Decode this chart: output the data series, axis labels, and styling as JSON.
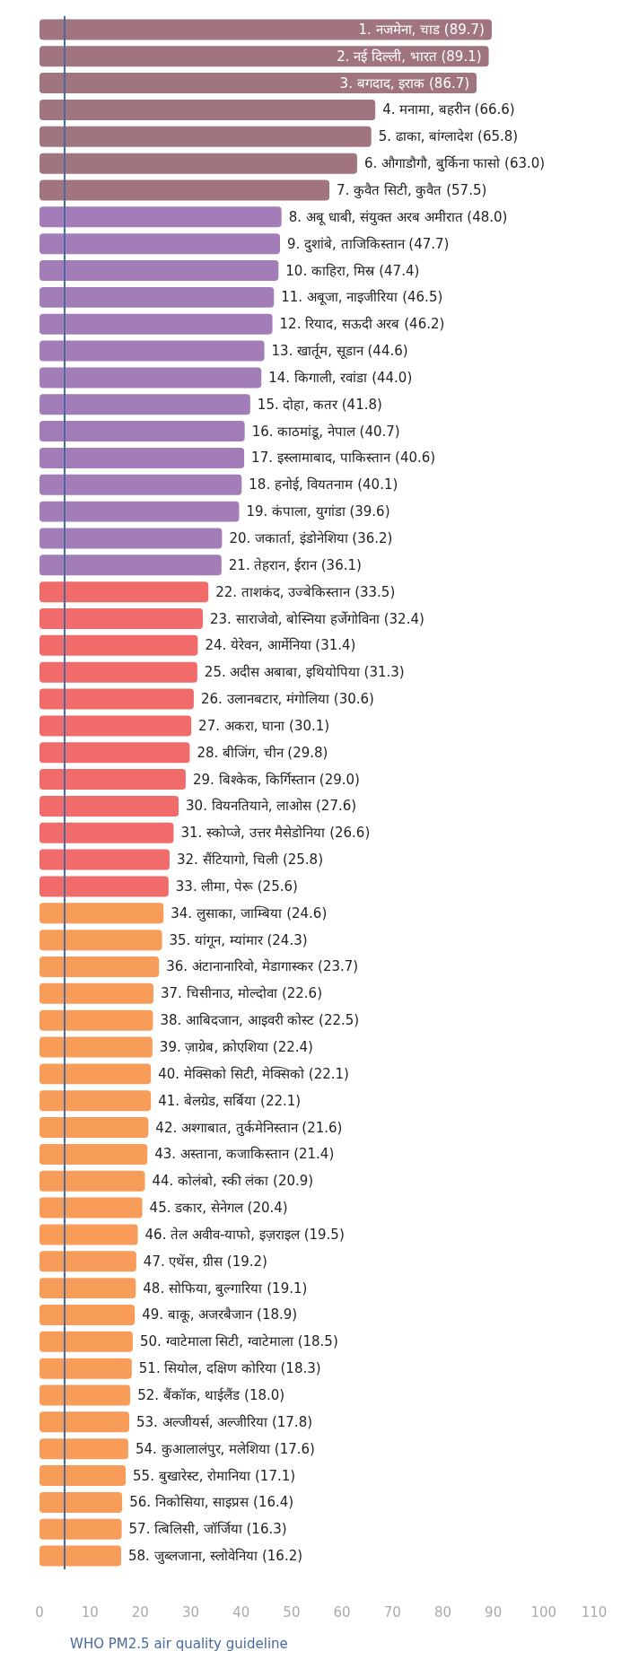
{
  "chart_data": {
    "type": "bar",
    "orientation": "horizontal",
    "categories": [
      "1. नजमेना, चाड",
      "2. नई दिल्ली, भारत",
      "3. बगदाद, इराक",
      "4. मनामा, बहरीन",
      "5. ढाका, बांग्लादेश",
      "6. औगाडौगौ, बुर्किना फासो",
      "7. कुवैत सिटी, कुवैत",
      "8. अबू धाबी, संयुक्त अरब अमीरात",
      "9. दुशांबे, ताजिकिस्तान",
      "10. काहिरा, मिस्र",
      "11. अबूजा, नाइजीरिया",
      "12. रियाद, सऊदी अरब",
      "13. खार्तूम, सूडान",
      "14. किगाली, रवांडा",
      "15. दोहा, कतर",
      "16. काठमांडू, नेपाल",
      "17. इस्लामाबाद, पाकिस्तान",
      "18. हनोई, वियतनाम",
      "19. कंपाला, युगांडा",
      "20. जकार्ता, इंडोनेशिया",
      "21. तेहरान, ईरान",
      "22. ताशकंद, उज्बेकिस्तान",
      "23. साराजेवो, बोस्निया हर्जेगोविना",
      "24. येरेवन, आर्मेनिया",
      "25. अदीस अबाबा, इथियोपिया",
      "26. उलानबटार, मंगोलिया",
      "27. अकरा, घाना",
      "28. बीजिंग, चीन",
      "29. बिश्केक, किर्गिस्तान",
      "30. वियनतियाने, लाओस",
      "31. स्कोप्जे, उत्तर मैसेडोनिया",
      "32. सैंटियागो, चिली",
      "33. लीमा, पेरू",
      "34. लुसाका, जाम्बिया",
      "35. यांगून, म्यांमार",
      "36. अंटानानारिवो, मेडागास्कर",
      "37. चिसीनाउ, मोल्दोवा",
      "38. आबिदजान, आइवरी कोस्ट",
      "39. ज़ाग्रेब, क्रोएशिया",
      "40. मेक्सिको सिटी, मेक्सिको",
      "41. बेलग्रेड, सर्बिया",
      "42. अश्गाबात, तुर्कमेनिस्तान",
      "43. अस्ताना, कजाकिस्तान",
      "44. कोलंबो, स्की लंका",
      "45. डकार, सेनेगल",
      "46. तेल अवीव-याफो, इज़राइल",
      "47. एथेंस, ग्रीस",
      "48. सोफिया, बुल्गारिया",
      "49. बाकू, अजरबैजान",
      "50. ग्वाटेमाला सिटी, ग्वाटेमाला",
      "51. सियोल, दक्षिण कोरिया",
      "52. बैंकॉक, थाईलैंड",
      "53. अल्जीयर्स, अल्जीरिया",
      "54. कुआलालंपुर, मलेशिया",
      "55. बुखारेस्ट, रोमानिया",
      "56. निकोसिया, साइप्रस",
      "57. त्बिलिसी, जॉर्जिया",
      "58. जुब्लजाना, स्लोवेनिया"
    ],
    "values": [
      89.7,
      89.1,
      86.7,
      66.6,
      65.8,
      63.0,
      57.5,
      48.0,
      47.7,
      47.4,
      46.5,
      46.2,
      44.6,
      44.0,
      41.8,
      40.7,
      40.6,
      40.1,
      39.6,
      36.2,
      36.1,
      33.5,
      32.4,
      31.4,
      31.3,
      30.6,
      30.1,
      29.8,
      29.0,
      27.6,
      26.6,
      25.8,
      25.6,
      24.6,
      24.3,
      23.7,
      22.6,
      22.5,
      22.4,
      22.1,
      22.1,
      21.6,
      21.4,
      20.9,
      20.4,
      19.5,
      19.2,
      19.1,
      18.9,
      18.5,
      18.3,
      18.0,
      17.8,
      17.6,
      17.1,
      16.4,
      16.3,
      16.2
    ],
    "value_labels": [
      "(89.7)",
      "(89.1)",
      "(86.7)",
      "(66.6)",
      "(65.8)",
      "(63.0)",
      "(57.5)",
      "(48.0)",
      "(47.7)",
      "(47.4)",
      "(46.5)",
      "(46.2)",
      "(44.6)",
      "(44.0)",
      "(41.8)",
      "(40.7)",
      "(40.6)",
      "(40.1)",
      "(39.6)",
      "(36.2)",
      "(36.1)",
      "(33.5)",
      "(32.4)",
      "(31.4)",
      "(31.3)",
      "(30.6)",
      "(30.1)",
      "(29.8)",
      "(29.0)",
      "(27.6)",
      "(26.6)",
      "(25.8)",
      "(25.6)",
      "(24.6)",
      "(24.3)",
      "(23.7)",
      "(22.6)",
      "(22.5)",
      "(22.4)",
      "(22.1)",
      "(22.1)",
      "(21.6)",
      "(21.4)",
      "(20.9)",
      "(20.4)",
      "(19.5)",
      "(19.2)",
      "(19.1)",
      "(18.9)",
      "(18.5)",
      "(18.3)",
      "(18.0)",
      "(17.8)",
      "(17.6)",
      "(17.1)",
      "(16.4)",
      "(16.3)",
      "(16.2)"
    ],
    "colors": [
      "#a07580",
      "#a07580",
      "#a07580",
      "#a07580",
      "#a07580",
      "#a07580",
      "#a07580",
      "#a37db8",
      "#a37db8",
      "#a37db8",
      "#a37db8",
      "#a37db8",
      "#a37db8",
      "#a37db8",
      "#a37db8",
      "#a37db8",
      "#a37db8",
      "#a37db8",
      "#a37db8",
      "#a37db8",
      "#a37db8",
      "#f26b6b",
      "#f26b6b",
      "#f26b6b",
      "#f26b6b",
      "#f26b6b",
      "#f26b6b",
      "#f26b6b",
      "#f26b6b",
      "#f26b6b",
      "#f26b6b",
      "#f26b6b",
      "#f26b6b",
      "#f89c5a",
      "#f89c5a",
      "#f89c5a",
      "#f89c5a",
      "#f89c5a",
      "#f89c5a",
      "#f89c5a",
      "#f89c5a",
      "#f89c5a",
      "#f89c5a",
      "#f89c5a",
      "#f89c5a",
      "#f89c5a",
      "#f89c5a",
      "#f89c5a",
      "#f89c5a",
      "#f89c5a",
      "#f89c5a",
      "#f89c5a",
      "#f89c5a",
      "#f89c5a",
      "#f89c5a",
      "#f89c5a",
      "#f89c5a",
      "#f89c5a"
    ],
    "xlim": [
      0,
      110
    ],
    "xticks": [
      0,
      10,
      20,
      30,
      40,
      50,
      60,
      70,
      80,
      90,
      100,
      110
    ],
    "ref_lines": [
      {
        "axis": "x",
        "value": 5,
        "label": "WHO PM2.5 air quality guideline",
        "color": "#4a6a9e"
      }
    ],
    "grid": false,
    "tick_labels": "x"
  }
}
